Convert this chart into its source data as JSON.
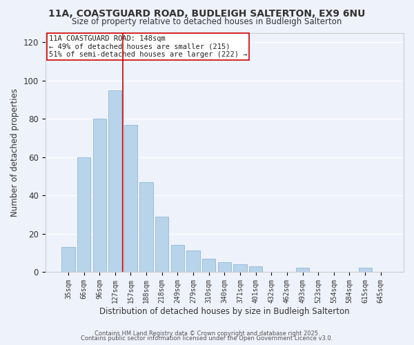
{
  "title1": "11A, COASTGUARD ROAD, BUDLEIGH SALTERTON, EX9 6NU",
  "title2": "Size of property relative to detached houses in Budleigh Salterton",
  "xlabel": "Distribution of detached houses by size in Budleigh Salterton",
  "ylabel": "Number of detached properties",
  "bar_labels": [
    "35sqm",
    "66sqm",
    "96sqm",
    "127sqm",
    "157sqm",
    "188sqm",
    "218sqm",
    "249sqm",
    "279sqm",
    "310sqm",
    "340sqm",
    "371sqm",
    "401sqm",
    "432sqm",
    "462sqm",
    "493sqm",
    "523sqm",
    "554sqm",
    "584sqm",
    "615sqm",
    "645sqm"
  ],
  "bar_heights": [
    13,
    60,
    80,
    95,
    77,
    47,
    29,
    14,
    11,
    7,
    5,
    4,
    3,
    0,
    0,
    2,
    0,
    0,
    0,
    2,
    0
  ],
  "bar_color": "#b8d4ea",
  "bar_edge_color": "#9abdd8",
  "vline_color": "#cc0000",
  "ylim": [
    0,
    125
  ],
  "yticks": [
    0,
    20,
    40,
    60,
    80,
    100,
    120
  ],
  "annotation_title": "11A COASTGUARD ROAD: 148sqm",
  "annotation_line1": "← 49% of detached houses are smaller (215)",
  "annotation_line2": "51% of semi-detached houses are larger (222) →",
  "footer1": "Contains HM Land Registry data © Crown copyright and database right 2025.",
  "footer2": "Contains public sector information licensed under the Open Government Licence v3.0.",
  "bg_color": "#eef2fb",
  "grid_color": "#ffffff"
}
